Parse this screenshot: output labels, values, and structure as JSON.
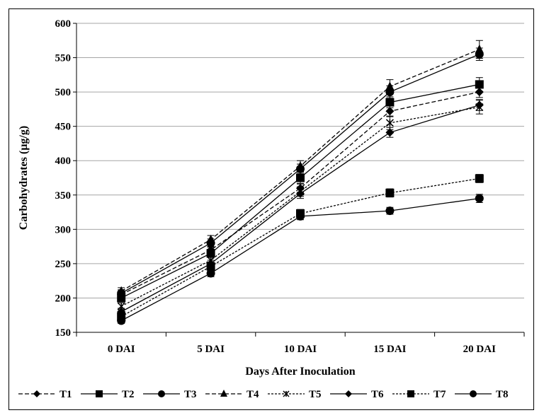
{
  "chart_data": {
    "type": "line",
    "categories": [
      "0 DAI",
      "5 DAI",
      "10 DAI",
      "15 DAI",
      "20 DAI"
    ],
    "xlabel": "Days After Inoculation",
    "ylabel": "Carbohydrates (µg/g)",
    "ylim": [
      150,
      600
    ],
    "yticks": [
      150,
      200,
      250,
      300,
      350,
      400,
      450,
      500,
      550,
      600
    ],
    "grid": true,
    "legend_position": "bottom",
    "error_bars": true,
    "series": [
      {
        "name": "T1",
        "marker": "diamond",
        "dash": "dashed",
        "values": [
          205,
          270,
          360,
          472,
          500
        ],
        "errors": [
          5,
          5,
          6,
          8,
          8
        ]
      },
      {
        "name": "T2",
        "marker": "square",
        "dash": "solid",
        "values": [
          200,
          265,
          375,
          485,
          511
        ],
        "errors": [
          5,
          6,
          8,
          8,
          10
        ]
      },
      {
        "name": "T3",
        "marker": "circle",
        "dash": "solid",
        "values": [
          207,
          280,
          388,
          500,
          555
        ],
        "errors": [
          5,
          6,
          7,
          9,
          9
        ]
      },
      {
        "name": "T4",
        "marker": "triangle",
        "dash": "dashed",
        "values": [
          210,
          285,
          392,
          508,
          562
        ],
        "errors": [
          5,
          6,
          8,
          10,
          13
        ]
      },
      {
        "name": "T5",
        "marker": "star",
        "dash": "dotted",
        "values": [
          188,
          255,
          355,
          455,
          478
        ],
        "errors": [
          5,
          5,
          7,
          10,
          10
        ]
      },
      {
        "name": "T6",
        "marker": "diamond",
        "dash": "solid",
        "values": [
          180,
          250,
          352,
          441,
          481
        ],
        "errors": [
          5,
          5,
          7,
          7,
          8
        ]
      },
      {
        "name": "T7",
        "marker": "square",
        "dash": "dotted",
        "values": [
          173,
          246,
          323,
          353,
          374
        ],
        "errors": [
          5,
          5,
          6,
          6,
          6
        ]
      },
      {
        "name": "T8",
        "marker": "circle",
        "dash": "solid",
        "values": [
          167,
          236,
          319,
          327,
          345
        ],
        "errors": [
          4,
          5,
          5,
          5,
          6
        ]
      }
    ]
  }
}
